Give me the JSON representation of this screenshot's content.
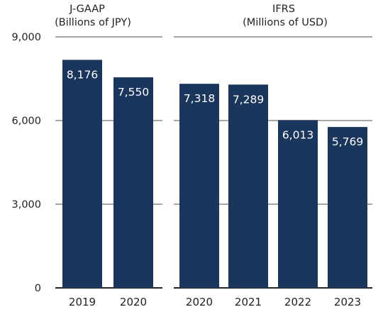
{
  "chart_data": [
    {
      "type": "bar",
      "title": "J-GAAP",
      "subtitle": "(Billions of JPY)",
      "categories": [
        "2019",
        "2020"
      ],
      "values": [
        8176,
        7550
      ],
      "value_labels": [
        "8,176",
        "7,550"
      ],
      "ylim": [
        0,
        9000
      ],
      "yticks": [
        0,
        3000,
        6000,
        9000
      ],
      "ytick_labels": [
        "0",
        "3,000",
        "6,000",
        "9,000"
      ],
      "grid": true,
      "bar_color": "#1b365d"
    },
    {
      "type": "bar",
      "title": "IFRS",
      "subtitle": "(Millions of USD)",
      "categories": [
        "2020",
        "2021",
        "2022",
        "2023"
      ],
      "values": [
        7318,
        7289,
        6013,
        5769
      ],
      "value_labels": [
        "7,318",
        "7,289",
        "6,013",
        "5,769"
      ],
      "ylim": [
        0,
        9000
      ],
      "yticks": [
        0,
        3000,
        6000,
        9000
      ],
      "grid": true,
      "bar_color": "#1b365d"
    }
  ],
  "colors": {
    "bar": "#1b365d",
    "grid": "#a6a6a6",
    "axis": "#262626",
    "text": "#222222",
    "bar_label": "#ffffff"
  }
}
